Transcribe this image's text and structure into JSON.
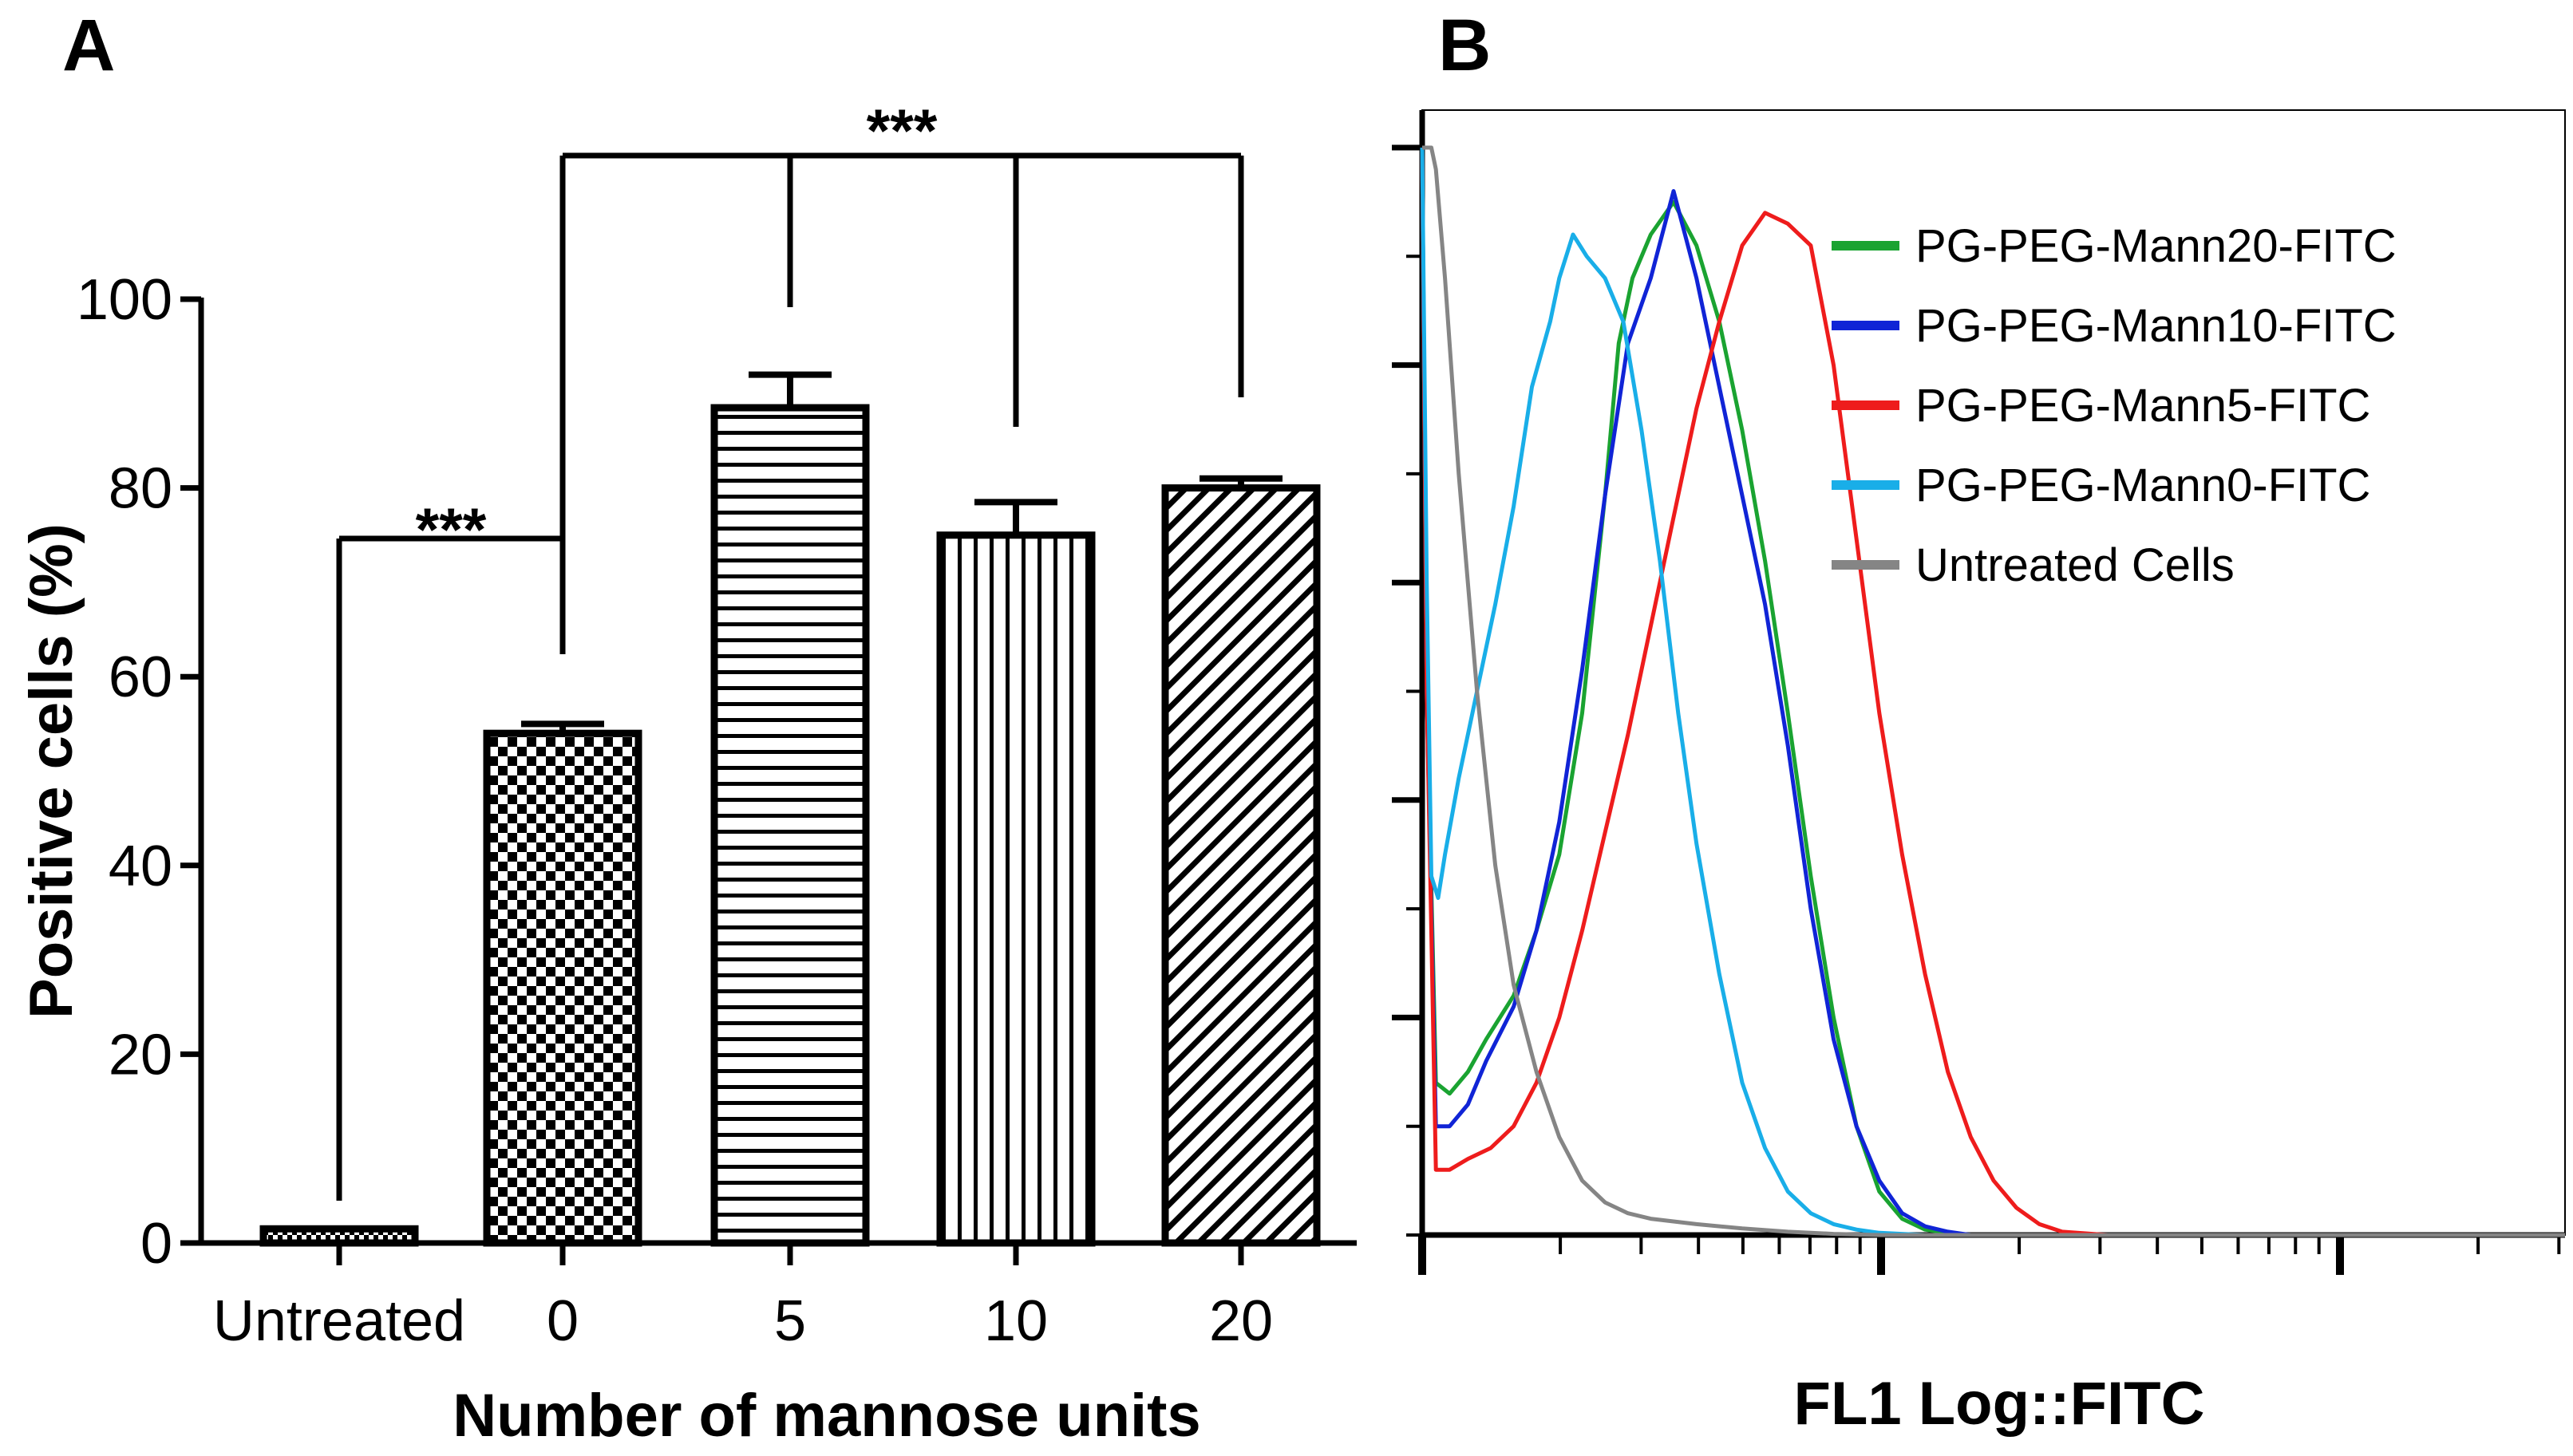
{
  "chart_data": [
    {
      "panel": "A",
      "type": "bar",
      "categories": [
        "Untreated",
        "0",
        "5",
        "10",
        "20"
      ],
      "values": [
        1.5,
        54,
        88.5,
        75,
        80
      ],
      "errors": [
        0,
        1,
        3.5,
        3.5,
        1
      ],
      "patterns": [
        "check-fine",
        "checker",
        "horizontal",
        "vertical",
        "diagonal"
      ],
      "ylabel": "Positive cells (%)",
      "xlabel": "Number of mannose units",
      "ylim": [
        0,
        100
      ],
      "yticks": [
        0,
        20,
        40,
        60,
        80,
        100
      ],
      "significance": [
        {
          "label": "***",
          "from": "Untreated",
          "to": [
            "0"
          ]
        },
        {
          "label": "***",
          "from": "0",
          "to": [
            "5",
            "10",
            "20"
          ]
        }
      ]
    },
    {
      "panel": "B",
      "type": "line",
      "xlabel": "FL1 Log::FITC",
      "series": [
        {
          "name": "PG-PEG-Mann20-FITC",
          "color": "#1aa331",
          "x": [
            0,
            0.01,
            0.03,
            0.06,
            0.1,
            0.14,
            0.2,
            0.25,
            0.3,
            0.35,
            0.4,
            0.43,
            0.46,
            0.5,
            0.55,
            0.6,
            0.65,
            0.7,
            0.75,
            0.8,
            0.85,
            0.9,
            0.95,
            1.0,
            1.05,
            1.1,
            1.15,
            1.2,
            1.3,
            1.5,
            2.5
          ],
          "y": [
            100,
            50,
            14,
            13,
            15,
            18,
            22,
            28,
            35,
            48,
            68,
            82,
            88,
            92,
            95,
            91,
            84,
            74,
            62,
            48,
            33,
            20,
            10,
            4,
            1.5,
            0.5,
            0.2,
            0,
            0,
            0,
            0
          ]
        },
        {
          "name": "PG-PEG-Mann10-FITC",
          "color": "#1024d6",
          "x": [
            0,
            0.01,
            0.03,
            0.06,
            0.1,
            0.14,
            0.2,
            0.25,
            0.3,
            0.35,
            0.4,
            0.45,
            0.5,
            0.55,
            0.6,
            0.65,
            0.7,
            0.75,
            0.8,
            0.85,
            0.9,
            0.95,
            1.0,
            1.05,
            1.1,
            1.15,
            1.2,
            1.3,
            1.5,
            2.5
          ],
          "y": [
            100,
            50,
            10,
            10,
            12,
            16,
            21,
            28,
            38,
            52,
            68,
            82,
            88,
            96,
            88,
            78,
            68,
            58,
            45,
            30,
            18,
            10,
            5,
            2,
            0.8,
            0.3,
            0,
            0,
            0,
            0
          ]
        },
        {
          "name": "PG-PEG-Mann5-FITC",
          "color": "#ee1c1c",
          "x": [
            0,
            0.01,
            0.03,
            0.06,
            0.1,
            0.15,
            0.2,
            0.25,
            0.3,
            0.35,
            0.4,
            0.45,
            0.5,
            0.55,
            0.6,
            0.65,
            0.7,
            0.75,
            0.8,
            0.85,
            0.9,
            0.95,
            1.0,
            1.05,
            1.1,
            1.15,
            1.2,
            1.25,
            1.3,
            1.35,
            1.4,
            1.5,
            2.5
          ],
          "y": [
            100,
            50,
            6,
            6,
            7,
            8,
            10,
            14,
            20,
            28,
            37,
            46,
            56,
            66,
            76,
            84,
            91,
            94,
            93,
            91,
            80,
            64,
            48,
            35,
            24,
            15,
            9,
            5,
            2.5,
            1,
            0.3,
            0,
            0
          ]
        },
        {
          "name": "PG-PEG-Mann0-FITC",
          "color": "#19aee8",
          "x": [
            0,
            0.01,
            0.02,
            0.035,
            0.05,
            0.08,
            0.12,
            0.16,
            0.2,
            0.24,
            0.28,
            0.3,
            0.33,
            0.36,
            0.4,
            0.44,
            0.48,
            0.52,
            0.56,
            0.6,
            0.65,
            0.7,
            0.75,
            0.8,
            0.85,
            0.9,
            0.95,
            1.0,
            1.1,
            1.2,
            2.5
          ],
          "y": [
            100,
            60,
            33,
            31,
            35,
            42,
            50,
            58,
            67,
            78,
            84,
            88,
            92,
            90,
            88,
            84,
            74,
            62,
            48,
            36,
            24,
            14,
            8,
            4,
            2,
            1,
            0.5,
            0.2,
            0,
            0,
            0
          ]
        },
        {
          "name": "Untreated Cells",
          "color": "#858585",
          "x": [
            0,
            0.01,
            0.02,
            0.03,
            0.05,
            0.08,
            0.12,
            0.16,
            0.2,
            0.25,
            0.3,
            0.35,
            0.4,
            0.45,
            0.5,
            0.6,
            0.7,
            0.8,
            0.9,
            1.0,
            2.5
          ],
          "y": [
            100,
            100,
            100,
            98,
            88,
            70,
            50,
            34,
            23,
            15,
            9,
            5,
            3,
            2,
            1.5,
            1,
            0.6,
            0.3,
            0.1,
            0,
            0
          ]
        }
      ]
    }
  ],
  "labels": {
    "panel_a": "A",
    "panel_b": "B",
    "sig_a": "***",
    "sig_b": "***"
  }
}
